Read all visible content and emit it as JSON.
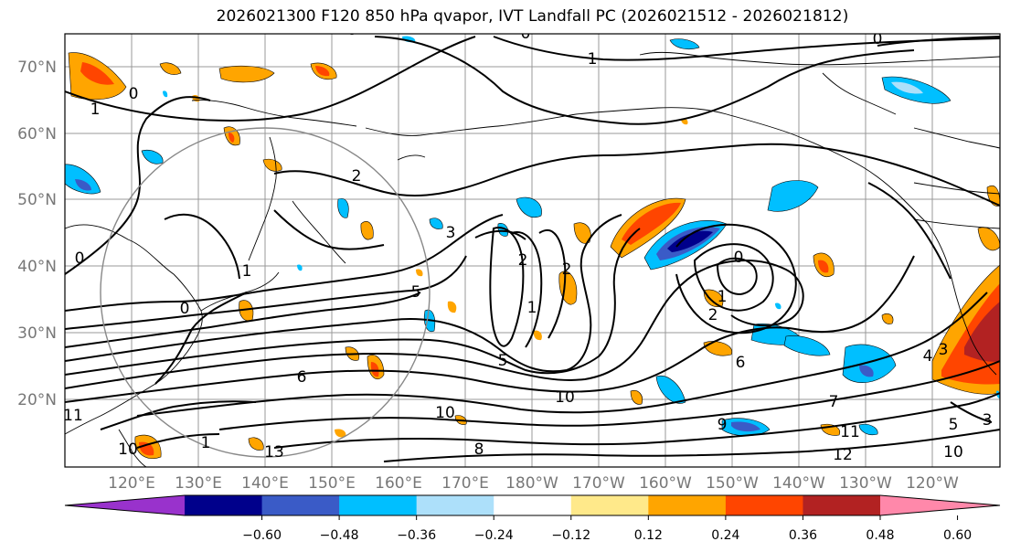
{
  "title": "2026021300 F120 850 hPa qvapor, IVT Landfall PC (2026021512 - 2026021812)",
  "lat_labels": [
    "70°N",
    "60°N",
    "50°N",
    "40°N",
    "30°N",
    "20°N"
  ],
  "lon_labels": [
    "120°E",
    "130°E",
    "140°E",
    "150°E",
    "160°E",
    "170°E",
    "180°W",
    "170°W",
    "160°W",
    "150°W",
    "140°W",
    "130°W",
    "120°W"
  ],
  "colorbar": {
    "colors": [
      "#9932CC",
      "#00008B",
      "#3A5BC7",
      "#00BFFF",
      "#ADE0FA",
      "#FFFFFF",
      "#FFE98A",
      "#FFA500",
      "#FF4500",
      "#B22222",
      "#FF88AA"
    ],
    "ticks": [
      "−0.60",
      "−0.48",
      "−0.36",
      "−0.24",
      "−0.12",
      "0.12",
      "0.24",
      "0.36",
      "0.48",
      "0.60"
    ]
  },
  "contour_labels": [
    "0",
    "0",
    "0",
    "1",
    "1",
    "0",
    "2",
    "3",
    "2",
    "2",
    "1",
    "0",
    "1",
    "2",
    "6",
    "7",
    "10",
    "10",
    "11",
    "12",
    "10",
    "11",
    "13",
    "5",
    "3",
    "4",
    "3",
    "0",
    "0",
    "1",
    "1",
    "5",
    "5",
    "6",
    "10",
    "9",
    "8"
  ]
}
